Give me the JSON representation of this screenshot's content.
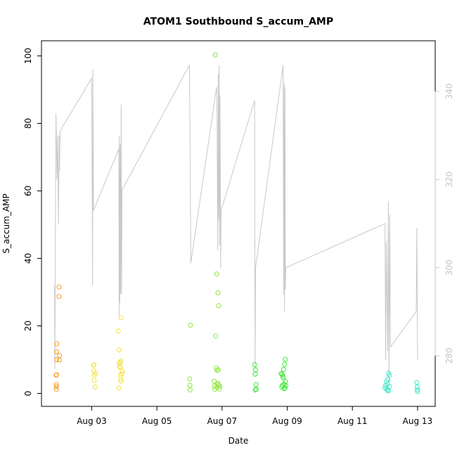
{
  "chart_data": {
    "type": "scatter",
    "title": "ATOM1 Southbound S_accum_AMP",
    "xlabel": "Date",
    "ylabel": "S_accum_AMP",
    "xlim": [
      "2025-08-01T11:00",
      "2025-08-13T13:00"
    ],
    "ylim": [
      0,
      100
    ],
    "x_ticks": [
      {
        "date": "2025-08-03",
        "label": "Aug 03"
      },
      {
        "date": "2025-08-05",
        "label": "Aug 05"
      },
      {
        "date": "2025-08-07",
        "label": "Aug 07"
      },
      {
        "date": "2025-08-09",
        "label": "Aug 09"
      },
      {
        "date": "2025-08-11",
        "label": "Aug 11"
      },
      {
        "date": "2025-08-13",
        "label": "Aug 13"
      }
    ],
    "y_ticks": [
      0,
      20,
      40,
      60,
      80,
      100
    ],
    "y2_ticks": [
      280,
      300,
      320,
      340
    ],
    "y2lim": [
      268.5,
      351.5
    ],
    "series": [
      {
        "color": "#f59a23",
        "points": [
          [
            "2025-08-01T21:50",
            1.2
          ],
          [
            "2025-08-01T21:55",
            2.0
          ],
          [
            "2025-08-01T22:00",
            2.6
          ],
          [
            "2025-08-01T21:52",
            5.4
          ],
          [
            "2025-08-01T22:05",
            5.5
          ],
          [
            "2025-08-01T22:10",
            10.0
          ],
          [
            "2025-08-01T22:02",
            12.3
          ],
          [
            "2025-08-01T22:20",
            14.7
          ],
          [
            "2025-08-02T00:10",
            9.9
          ],
          [
            "2025-08-02T00:20",
            11.2
          ],
          [
            "2025-08-01T23:50",
            28.7
          ],
          [
            "2025-08-01T23:58",
            31.5
          ]
        ]
      },
      {
        "color": "#f3e33a",
        "points": [
          [
            "2025-08-03T01:20",
            8.4
          ],
          [
            "2025-08-03T01:40",
            8.4
          ],
          [
            "2025-08-03T01:30",
            6.7
          ],
          [
            "2025-08-03T02:00",
            5.4
          ],
          [
            "2025-08-03T01:50",
            3.8
          ],
          [
            "2025-08-03T02:40",
            6.0
          ],
          [
            "2025-08-03T02:30",
            1.9
          ],
          [
            "2025-08-03T19:30",
            18.5
          ],
          [
            "2025-08-03T20:00",
            1.5
          ],
          [
            "2025-08-03T20:10",
            12.9
          ],
          [
            "2025-08-03T20:20",
            9.0
          ],
          [
            "2025-08-03T20:40",
            8.0
          ],
          [
            "2025-08-03T21:00",
            7.6
          ],
          [
            "2025-08-03T21:10",
            5.3
          ],
          [
            "2025-08-03T21:20",
            4.1
          ],
          [
            "2025-08-03T21:30",
            9.6
          ],
          [
            "2025-08-03T21:40",
            22.4
          ],
          [
            "2025-08-03T21:55",
            3.6
          ],
          [
            "2025-08-03T22:10",
            5.8
          ],
          [
            "2025-08-03T22:20",
            6.6
          ],
          [
            "2025-08-03T20:50",
            9.2
          ]
        ]
      },
      {
        "color": "#8fe63a",
        "points": [
          [
            "2025-08-06T00:10",
            4.3
          ],
          [
            "2025-08-06T00:20",
            2.4
          ],
          [
            "2025-08-06T00:30",
            1.0
          ],
          [
            "2025-08-06T00:40",
            20.2
          ],
          [
            "2025-08-06T19:00",
            100.3
          ],
          [
            "2025-08-06T18:10",
            3.6
          ],
          [
            "2025-08-06T18:30",
            2.2
          ],
          [
            "2025-08-06T19:20",
            17.0
          ],
          [
            "2025-08-06T20:00",
            35.4
          ],
          [
            "2025-08-06T21:00",
            29.8
          ],
          [
            "2025-08-06T21:30",
            26.0
          ],
          [
            "2025-08-06T19:40",
            7.5
          ],
          [
            "2025-08-06T21:10",
            7.0
          ],
          [
            "2025-08-06T20:20",
            6.8
          ],
          [
            "2025-08-06T20:40",
            2.6
          ],
          [
            "2025-08-06T21:40",
            2.4
          ],
          [
            "2025-08-06T22:00",
            1.3
          ],
          [
            "2025-08-06T19:50",
            1.8
          ],
          [
            "2025-08-06T20:50",
            3.0
          ],
          [
            "2025-08-06T22:20",
            2.0
          ],
          [
            "2025-08-06T18:40",
            1.2
          ]
        ]
      },
      {
        "color": "#3ee63a",
        "points": [
          [
            "2025-08-08T00:00",
            8.5
          ],
          [
            "2025-08-08T00:20",
            5.7
          ],
          [
            "2025-08-08T00:40",
            7.0
          ],
          [
            "2025-08-08T01:00",
            2.6
          ],
          [
            "2025-08-08T01:10",
            1.2
          ],
          [
            "2025-08-08T00:30",
            1.0
          ],
          [
            "2025-08-08T19:30",
            5.9
          ],
          [
            "2025-08-08T20:00",
            1.9
          ],
          [
            "2025-08-08T20:30",
            2.4
          ],
          [
            "2025-08-08T21:00",
            4.6
          ],
          [
            "2025-08-08T21:20",
            7.1
          ],
          [
            "2025-08-08T22:00",
            8.6
          ],
          [
            "2025-08-08T22:30",
            10.1
          ],
          [
            "2025-08-08T22:50",
            3.5
          ],
          [
            "2025-08-08T21:40",
            2.8
          ],
          [
            "2025-08-08T21:50",
            1.4
          ],
          [
            "2025-08-08T20:50",
            5.1
          ],
          [
            "2025-08-08T22:20",
            1.6
          ],
          [
            "2025-08-08T23:00",
            2.2
          ],
          [
            "2025-08-08T20:10",
            5.6
          ]
        ]
      },
      {
        "color": "#3ee6c9",
        "points": [
          [
            "2025-08-12T00:00",
            1.6
          ],
          [
            "2025-08-12T00:30",
            2.3
          ],
          [
            "2025-08-12T01:00",
            3.5
          ],
          [
            "2025-08-12T01:20",
            1.3
          ],
          [
            "2025-08-12T01:50",
            2.8
          ],
          [
            "2025-08-12T02:10",
            4.1
          ],
          [
            "2025-08-12T02:40",
            6.0
          ],
          [
            "2025-08-12T03:10",
            5.4
          ],
          [
            "2025-08-12T03:30",
            2.0
          ],
          [
            "2025-08-12T02:00",
            1.0
          ],
          [
            "2025-08-12T02:30",
            0.7
          ],
          [
            "2025-08-12T23:30",
            3.2
          ],
          [
            "2025-08-12T23:45",
            1.9
          ],
          [
            "2025-08-13T00:00",
            0.6
          ],
          [
            "2025-08-12T23:55",
            1.1
          ]
        ]
      }
    ],
    "secondary_line": {
      "color": "#c8c8c8",
      "points": [
        [
          "2025-08-01T20:40",
          296
        ],
        [
          "2025-08-01T20:50",
          277
        ],
        [
          "2025-08-01T21:40",
          335
        ],
        [
          "2025-08-01T22:30",
          320
        ],
        [
          "2025-08-01T23:00",
          330
        ],
        [
          "2025-08-01T23:30",
          310
        ],
        [
          "2025-08-02T00:10",
          330
        ],
        [
          "2025-08-02T00:20",
          322
        ],
        [
          "2025-08-02T00:40",
          331
        ],
        [
          "2025-08-03T00:00",
          343
        ],
        [
          "2025-08-03T00:40",
          296
        ],
        [
          "2025-08-03T00:50",
          345
        ],
        [
          "2025-08-03T01:20",
          313
        ],
        [
          "2025-08-03T20:00",
          327
        ],
        [
          "2025-08-03T20:10",
          289
        ],
        [
          "2025-08-03T20:20",
          330
        ],
        [
          "2025-08-03T20:40",
          292
        ],
        [
          "2025-08-03T21:00",
          328
        ],
        [
          "2025-08-03T21:20",
          294
        ],
        [
          "2025-08-03T21:40",
          337
        ],
        [
          "2025-08-03T22:00",
          294
        ],
        [
          "2025-08-03T22:20",
          318
        ],
        [
          "2025-08-03T23:00",
          318
        ],
        [
          "2025-08-06T00:00",
          346
        ],
        [
          "2025-08-06T00:30",
          327
        ],
        [
          "2025-08-06T01:00",
          301
        ],
        [
          "2025-08-06T20:00",
          341
        ],
        [
          "2025-08-06T20:20",
          335
        ],
        [
          "2025-08-06T20:50",
          304
        ],
        [
          "2025-08-06T21:10",
          344
        ],
        [
          "2025-08-06T21:30",
          311
        ],
        [
          "2025-08-06T21:50",
          346
        ],
        [
          "2025-08-06T22:10",
          305
        ],
        [
          "2025-08-06T22:30",
          339
        ],
        [
          "2025-08-06T23:00",
          300
        ],
        [
          "2025-08-06T23:20",
          313
        ],
        [
          "2025-08-08T00:00",
          338
        ],
        [
          "2025-08-08T00:20",
          277
        ],
        [
          "2025-08-08T00:40",
          300
        ],
        [
          "2025-08-08T21:00",
          346
        ],
        [
          "2025-08-08T21:20",
          294
        ],
        [
          "2025-08-08T21:40",
          342
        ],
        [
          "2025-08-08T22:00",
          290
        ],
        [
          "2025-08-08T22:20",
          341
        ],
        [
          "2025-08-08T22:40",
          295
        ],
        [
          "2025-08-08T23:00",
          300
        ],
        [
          "2025-08-12T00:00",
          310
        ],
        [
          "2025-08-12T00:30",
          279
        ],
        [
          "2025-08-12T01:00",
          306
        ],
        [
          "2025-08-12T02:00",
          281
        ],
        [
          "2025-08-12T02:30",
          315
        ],
        [
          "2025-08-12T03:00",
          274
        ],
        [
          "2025-08-12T03:30",
          312
        ],
        [
          "2025-08-12T04:00",
          282
        ],
        [
          "2025-08-12T23:00",
          290
        ],
        [
          "2025-08-12T23:30",
          309
        ],
        [
          "2025-08-13T00:00",
          279
        ]
      ]
    },
    "grid": false,
    "legend": "none"
  }
}
